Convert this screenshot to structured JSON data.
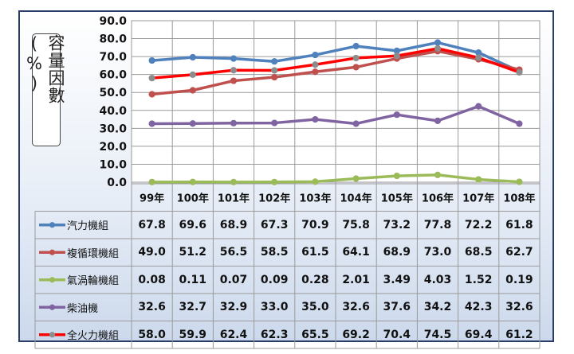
{
  "chart_data": {
    "type": "line",
    "ylabel": "容量因數(%)",
    "ylim": [
      0,
      90
    ],
    "yticks": [
      "0.0",
      "10.0",
      "20.0",
      "30.0",
      "40.0",
      "50.0",
      "60.0",
      "70.0",
      "80.0",
      "90.0"
    ],
    "categories": [
      "99年",
      "100年",
      "101年",
      "102年",
      "103年",
      "104年",
      "105年",
      "106年",
      "107年",
      "108年"
    ],
    "grid": true,
    "legend": "table-left",
    "series": [
      {
        "name": "汽力機組",
        "color": "#4f81bd",
        "marker": "#4f81bd",
        "values": [
          67.8,
          69.6,
          68.9,
          67.3,
          70.9,
          75.8,
          73.2,
          77.8,
          72.2,
          61.8
        ],
        "labels": [
          "67.8",
          "69.6",
          "68.9",
          "67.3",
          "70.9",
          "75.8",
          "73.2",
          "77.8",
          "72.2",
          "61.8"
        ]
      },
      {
        "name": "複循環機組",
        "color": "#c0504d",
        "marker": "#c0504d",
        "values": [
          49.0,
          51.2,
          56.5,
          58.5,
          61.5,
          64.1,
          68.9,
          73.0,
          68.5,
          62.7
        ],
        "labels": [
          "49.0",
          "51.2",
          "56.5",
          "58.5",
          "61.5",
          "64.1",
          "68.9",
          "73.0",
          "68.5",
          "62.7"
        ]
      },
      {
        "name": "氣渦輪機組",
        "color": "#9bbb59",
        "marker": "#9bbb59",
        "values": [
          0.08,
          0.11,
          0.07,
          0.09,
          0.28,
          2.01,
          3.49,
          4.03,
          1.52,
          0.19
        ],
        "labels": [
          "0.08",
          "0.11",
          "0.07",
          "0.09",
          "0.28",
          "2.01",
          "3.49",
          "4.03",
          "1.52",
          "0.19"
        ]
      },
      {
        "name": "柴油機",
        "color": "#8064a2",
        "marker": "#8064a2",
        "values": [
          32.6,
          32.7,
          32.9,
          33.0,
          35.0,
          32.6,
          37.6,
          34.2,
          42.3,
          32.6
        ],
        "labels": [
          "32.6",
          "32.7",
          "32.9",
          "33.0",
          "35.0",
          "32.6",
          "37.6",
          "34.2",
          "42.3",
          "32.6"
        ]
      },
      {
        "name": "全火力機組",
        "color": "#ff0000",
        "marker": "#8c8c8c",
        "values": [
          58.0,
          59.9,
          62.4,
          62.3,
          65.5,
          69.2,
          70.4,
          74.5,
          69.4,
          61.2
        ],
        "labels": [
          "58.0",
          "59.9",
          "62.4",
          "62.3",
          "65.5",
          "69.2",
          "70.4",
          "74.5",
          "69.4",
          "61.2"
        ]
      }
    ]
  }
}
